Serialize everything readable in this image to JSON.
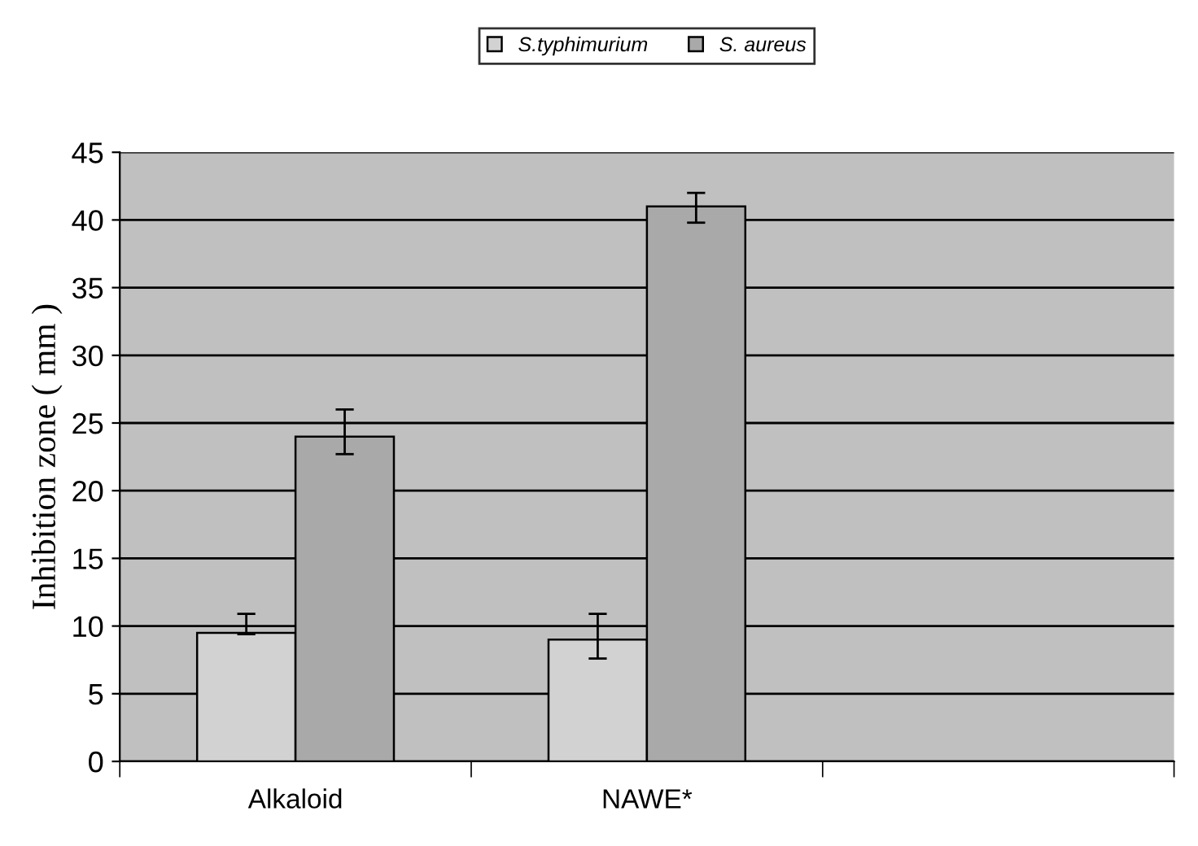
{
  "chart_data": {
    "type": "bar",
    "ylabel": "Inhibition zone ( mm )",
    "categories": [
      "Alkaloid",
      "NAWE*",
      null
    ],
    "series": [
      {
        "name": "S.typhimurium",
        "color": "#d2d2d2",
        "values": [
          9.5,
          9,
          null
        ],
        "errors": [
          [
            9.4,
            10.9
          ],
          [
            7.6,
            10.9
          ],
          null
        ]
      },
      {
        "name": "S. aureus",
        "color": "#a9a9a9",
        "values": [
          24,
          41,
          null
        ],
        "errors": [
          [
            22.7,
            26.0
          ],
          [
            39.8,
            42.0
          ],
          null
        ]
      }
    ],
    "ylim": [
      0,
      45
    ],
    "yticks": [
      0,
      5,
      10,
      15,
      20,
      25,
      30,
      35,
      40,
      45
    ],
    "grid": "y",
    "legend": "top"
  }
}
